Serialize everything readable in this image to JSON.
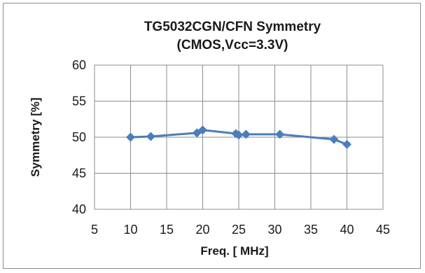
{
  "chart_data": {
    "type": "line",
    "title": "TG5032CGN/CFN Symmetry",
    "subtitle": "(CMOS,Vcc=3.3V)",
    "xlabel": "Freq. [ MHz]",
    "ylabel": "Symmetry [%]",
    "xlim": [
      5,
      45
    ],
    "ylim": [
      40,
      60
    ],
    "xticks": [
      "5",
      "10",
      "15",
      "20",
      "25",
      "30",
      "35",
      "40",
      "45"
    ],
    "yticks": [
      "40",
      "45",
      "50",
      "55",
      "60"
    ],
    "grid": true,
    "legend": "none",
    "series_color": "#4a7ebb",
    "series": [
      {
        "x": [
          10,
          12.8,
          19.2,
          20,
          24.6,
          25,
          26,
          30.7,
          38.2,
          40
        ],
        "y": [
          50.0,
          50.1,
          50.6,
          51.0,
          50.5,
          50.3,
          50.4,
          50.4,
          49.7,
          49.0
        ]
      }
    ]
  }
}
